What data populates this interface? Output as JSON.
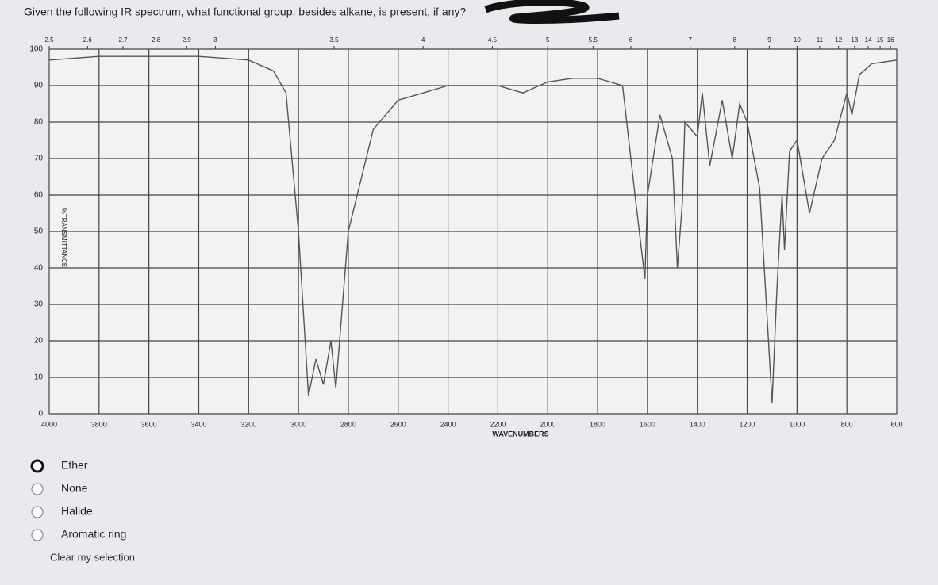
{
  "question": "Given the following IR spectrum, what functional group, besides alkane, is present, if any?",
  "chart_data": {
    "type": "line",
    "y_label": "%TRANSMITTANCE",
    "x_label": "WAVENUMBERS",
    "x": [
      4000,
      3800,
      3600,
      3400,
      3200,
      3100,
      3050,
      3000,
      2960,
      2930,
      2900,
      2870,
      2850,
      2800,
      2700,
      2600,
      2400,
      2200,
      2100,
      2000,
      1900,
      1800,
      1700,
      1650,
      1610,
      1600,
      1550,
      1500,
      1480,
      1460,
      1450,
      1400,
      1380,
      1350,
      1300,
      1260,
      1230,
      1200,
      1150,
      1100,
      1080,
      1060,
      1050,
      1030,
      1000,
      950,
      900,
      850,
      800,
      780,
      750,
      700,
      600
    ],
    "values": [
      97,
      98,
      98,
      98,
      97,
      94,
      88,
      50,
      5,
      15,
      8,
      20,
      7,
      50,
      78,
      86,
      90,
      90,
      88,
      91,
      92,
      92,
      90,
      60,
      37,
      60,
      82,
      70,
      40,
      58,
      80,
      76,
      88,
      68,
      86,
      70,
      85,
      80,
      62,
      3,
      35,
      60,
      45,
      72,
      75,
      55,
      70,
      75,
      88,
      82,
      93,
      96,
      97
    ],
    "color": "#555555",
    "xlim": [
      4000,
      600
    ],
    "ylim": [
      0,
      100
    ],
    "xticks": [
      4000,
      3800,
      3600,
      3400,
      3200,
      3000,
      2800,
      2600,
      2400,
      2200,
      2000,
      1800,
      1600,
      1400,
      1200,
      1000,
      800,
      600
    ],
    "yticks": [
      0,
      10,
      20,
      30,
      40,
      50,
      60,
      70,
      80,
      90,
      100
    ],
    "x2ticks": [
      2.5,
      2.6,
      2.7,
      2.8,
      2.9,
      3,
      3.5,
      4,
      4.5,
      5,
      5.5,
      6,
      7,
      8,
      9,
      10,
      11,
      12,
      13,
      14,
      15,
      16
    ],
    "grid": true
  },
  "options": [
    "Ether",
    "None",
    "Halide",
    "Aromatic ring"
  ],
  "clear": "Clear my selection"
}
